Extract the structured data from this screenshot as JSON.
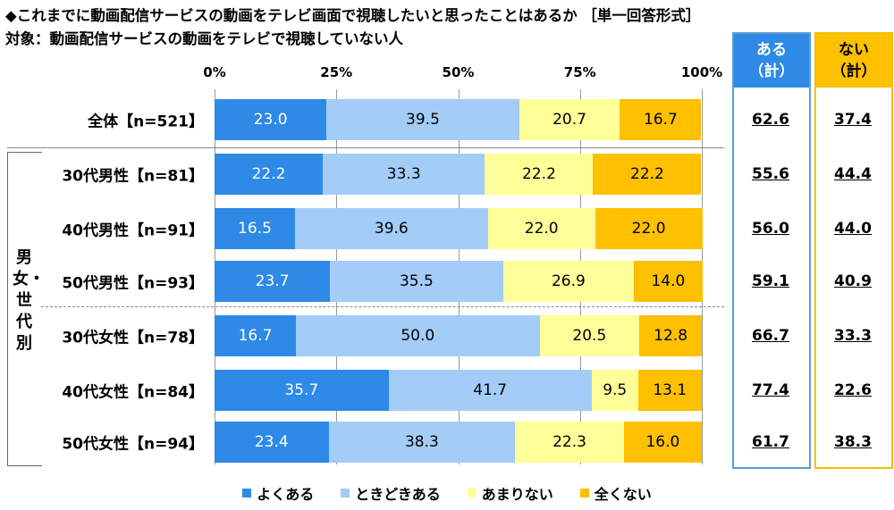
{
  "titles": {
    "main": "◆これまでに動画配信サービスの動画をテレビ画面で視聴したいと思ったことはあるか ［単一回答形式］",
    "sub": "対象：動画配信サービスの動画をテレビで視聴していない人"
  },
  "group_label": "男女・世代別",
  "summary_headers": {
    "aru_line1": "ある",
    "aru_line2": "（計）",
    "nai_line1": "ない",
    "nai_line2": "（計）"
  },
  "colors": {
    "yoku": "#2e8ae6",
    "tokidoki": "#a3ccf7",
    "amari": "#ffff99",
    "mattaku": "#ffc000",
    "box_aru": "#5b9bd5",
    "box_nai": "#f0c000"
  },
  "chart_data": {
    "type": "bar",
    "orientation": "horizontal",
    "stacked": "percent",
    "x_ticks": [
      "0%",
      "25%",
      "50%",
      "75%",
      "100%"
    ],
    "xlim": [
      0,
      100
    ],
    "categories": [
      "全体【n=521】",
      "30代男性【n=81】",
      "40代男性【n=91】",
      "50代男性【n=93】",
      "30代女性【n=78】",
      "40代女性【n=84】",
      "50代女性【n=94】"
    ],
    "series": [
      {
        "name": "よくある",
        "values": [
          23.0,
          22.2,
          16.5,
          23.7,
          16.7,
          35.7,
          23.4
        ]
      },
      {
        "name": "ときどきある",
        "values": [
          39.5,
          33.3,
          39.6,
          35.5,
          50.0,
          41.7,
          38.3
        ]
      },
      {
        "name": "あまりない",
        "values": [
          20.7,
          22.2,
          22.0,
          26.9,
          20.5,
          9.5,
          22.3
        ]
      },
      {
        "name": "全くない",
        "values": [
          16.7,
          22.2,
          22.0,
          14.0,
          12.8,
          13.1,
          16.0
        ]
      }
    ],
    "value_labels": [
      [
        "23.0",
        "39.5",
        "20.7",
        "16.7"
      ],
      [
        "22.2",
        "33.3",
        "22.2",
        "22.2"
      ],
      [
        "16.5",
        "39.6",
        "22.0",
        "22.0"
      ],
      [
        "23.7",
        "35.5",
        "26.9",
        "14.0"
      ],
      [
        "16.7",
        "50.0",
        "20.5",
        "12.8"
      ],
      [
        "35.7",
        "41.7",
        "9.5",
        "13.1"
      ],
      [
        "23.4",
        "38.3",
        "22.3",
        "16.0"
      ]
    ],
    "aru_total": [
      "62.6",
      "55.6",
      "56.0",
      "59.1",
      "66.7",
      "77.4",
      "61.7"
    ],
    "nai_total": [
      "37.4",
      "44.4",
      "44.0",
      "40.9",
      "33.3",
      "22.6",
      "38.3"
    ],
    "legend": [
      "よくある",
      "ときどきある",
      "あまりない",
      "全くない"
    ],
    "legend_placement": "bottom"
  }
}
